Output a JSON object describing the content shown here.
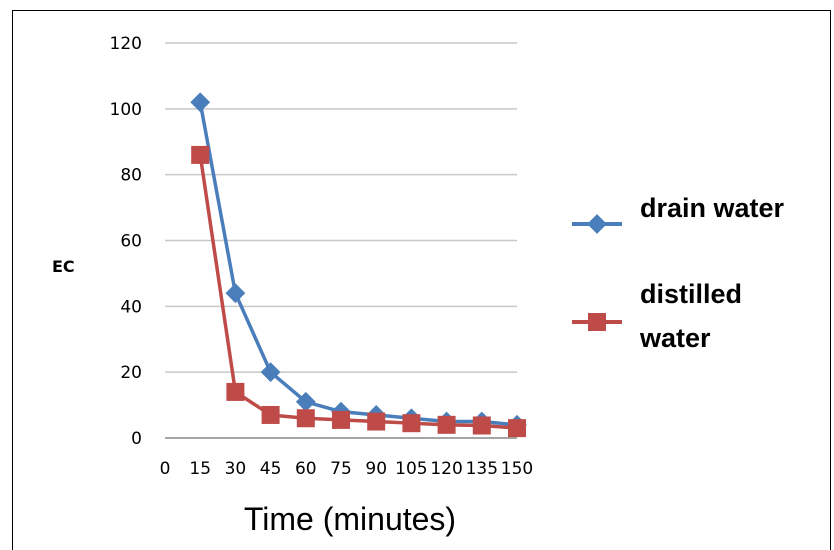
{
  "chart_data": {
    "type": "line",
    "xlabel": "Time (minutes)",
    "ylabel": "EC",
    "ylim": [
      0,
      120
    ],
    "yticks": [
      0,
      20,
      40,
      60,
      80,
      100,
      120
    ],
    "xticks": [
      "0",
      "15",
      "30",
      "45",
      "60",
      "75",
      "90",
      "105",
      "120",
      "135",
      "150"
    ],
    "x": [
      15,
      30,
      45,
      60,
      75,
      90,
      105,
      120,
      135,
      150
    ],
    "grid": true,
    "legend_position": "right",
    "series": [
      {
        "name": "drain water",
        "color": "#4a7ebb",
        "marker": "diamond",
        "values": [
          102,
          44,
          20,
          11,
          8,
          7,
          6,
          5,
          5,
          4
        ]
      },
      {
        "name_lines": [
          "distilled",
          "water"
        ],
        "color": "#be4b48",
        "marker": "square",
        "values": [
          86,
          14,
          7,
          6,
          5.5,
          5,
          4.5,
          4,
          3.8,
          3
        ]
      }
    ]
  }
}
